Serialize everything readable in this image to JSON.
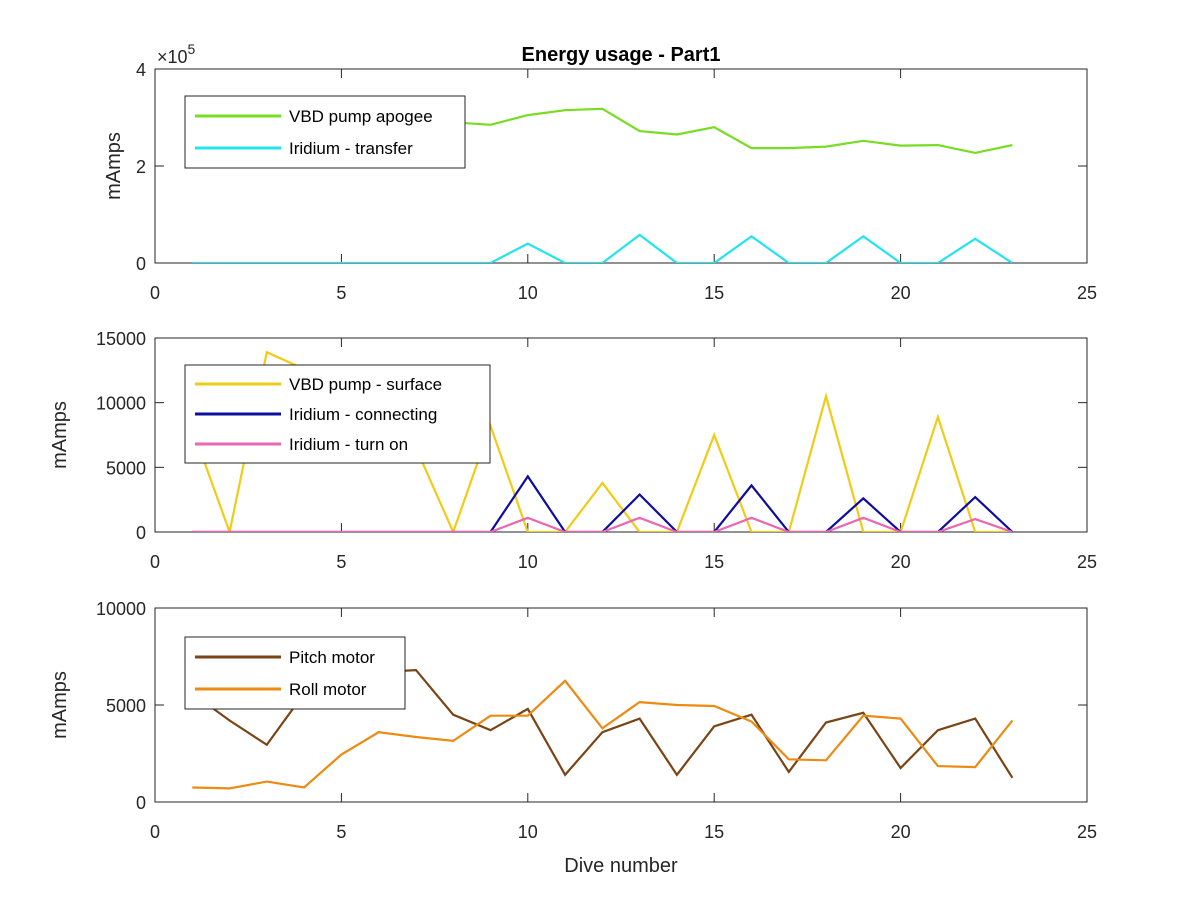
{
  "chart_data": [
    {
      "type": "line",
      "title": "Energy usage - Part1",
      "xlabel": "",
      "ylabel": "mAmps",
      "xlim": [
        0,
        25
      ],
      "ylim": [
        0,
        400000
      ],
      "xticks": [
        0,
        5,
        10,
        15,
        20,
        25
      ],
      "yticks": [
        0,
        200000,
        400000
      ],
      "ytick_labels": [
        "0",
        "2",
        "4"
      ],
      "y_exponent_label": "×10",
      "y_exponent": "5",
      "legend_position": "top-left",
      "x": [
        1,
        2,
        3,
        4,
        5,
        6,
        7,
        8,
        9,
        10,
        11,
        12,
        13,
        14,
        15,
        16,
        17,
        18,
        19,
        20,
        21,
        22,
        23
      ],
      "series": [
        {
          "name": "VBD pump apogee",
          "color": "#77dd22",
          "values": [
            300000,
            300000,
            300000,
            300000,
            295000,
            290000,
            288000,
            290000,
            285000,
            305000,
            315000,
            318000,
            272000,
            265000,
            280000,
            237000,
            237000,
            240000,
            252000,
            242000,
            243000,
            227000,
            243000
          ]
        },
        {
          "name": "Iridium - transfer",
          "color": "#22e3ef",
          "values": [
            0,
            0,
            0,
            0,
            0,
            0,
            0,
            0,
            0,
            40000,
            0,
            0,
            58000,
            0,
            0,
            55000,
            0,
            0,
            55000,
            0,
            0,
            50000,
            0
          ]
        }
      ]
    },
    {
      "type": "line",
      "title": "",
      "xlabel": "",
      "ylabel": "mAmps",
      "xlim": [
        0,
        25
      ],
      "ylim": [
        0,
        15000
      ],
      "xticks": [
        0,
        5,
        10,
        15,
        20,
        25
      ],
      "yticks": [
        0,
        5000,
        10000,
        15000
      ],
      "ytick_labels": [
        "0",
        "5000",
        "10000",
        "15000"
      ],
      "legend_position": "top-left",
      "x": [
        1,
        2,
        3,
        4,
        5,
        6,
        7,
        8,
        9,
        10,
        11,
        12,
        13,
        14,
        15,
        16,
        17,
        18,
        19,
        20,
        21,
        22,
        23
      ],
      "series": [
        {
          "name": "VBD pump - surface",
          "color": "#f2cb16",
          "values": [
            8000,
            0,
            13900,
            12600,
            12300,
            12000,
            6500,
            0,
            8200,
            0,
            0,
            3800,
            0,
            0,
            7500,
            0,
            0,
            10500,
            0,
            0,
            8900,
            0,
            0
          ]
        },
        {
          "name": "Iridium - connecting",
          "color": "#0d0d9e",
          "values": [
            0,
            0,
            0,
            0,
            0,
            0,
            0,
            0,
            0,
            4300,
            0,
            0,
            2900,
            0,
            0,
            3600,
            0,
            0,
            2600,
            0,
            0,
            2700,
            0
          ]
        },
        {
          "name": "Iridium - turn on",
          "color": "#e868b4",
          "values": [
            0,
            0,
            0,
            0,
            0,
            0,
            0,
            0,
            0,
            1100,
            0,
            0,
            1100,
            0,
            0,
            1100,
            0,
            0,
            1100,
            0,
            0,
            1000,
            0
          ]
        }
      ]
    },
    {
      "type": "line",
      "title": "",
      "xlabel": "Dive number",
      "ylabel": "mAmps",
      "xlim": [
        0,
        25
      ],
      "ylim": [
        0,
        10000
      ],
      "xticks": [
        0,
        5,
        10,
        15,
        20,
        25
      ],
      "yticks": [
        0,
        5000,
        10000
      ],
      "ytick_labels": [
        "0",
        "5000",
        "10000"
      ],
      "legend_position": "top-left",
      "x": [
        1,
        2,
        3,
        4,
        5,
        6,
        7,
        8,
        9,
        10,
        11,
        12,
        13,
        14,
        15,
        16,
        17,
        18,
        19,
        20,
        21,
        22,
        23
      ],
      "series": [
        {
          "name": "Pitch motor",
          "color": "#7a4516",
          "values": [
            5600,
            4200,
            2950,
            5600,
            6300,
            6700,
            6800,
            4500,
            3700,
            4800,
            1400,
            3600,
            4300,
            1400,
            3900,
            4500,
            1550,
            4100,
            4600,
            1750,
            3700,
            4300,
            1250
          ]
        },
        {
          "name": "Roll motor",
          "color": "#ec8a12",
          "values": [
            750,
            700,
            1050,
            750,
            2450,
            3600,
            3350,
            3150,
            4450,
            4450,
            6250,
            3800,
            5150,
            5000,
            4950,
            4150,
            2200,
            2150,
            4450,
            4300,
            1850,
            1800,
            4200
          ]
        }
      ]
    }
  ]
}
